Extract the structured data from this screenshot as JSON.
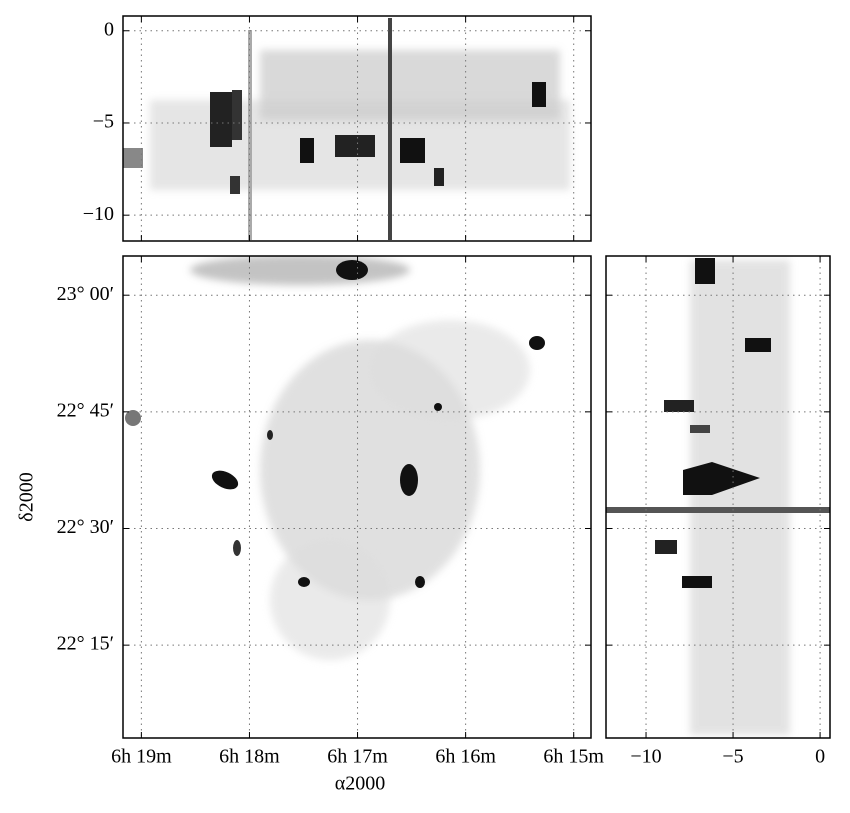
{
  "chart_data": [
    {
      "type": "image",
      "ylim": [
        -11.4,
        0.8
      ],
      "yticks": [
        0,
        {
          "value": -5,
          "label": "−5"
        },
        {
          "value": -10,
          "label": "−10"
        }
      ],
      "grid": true
    },
    {
      "type": "image",
      "xlabel": "α2000",
      "ylabel": "δ2000",
      "xlim": [
        19.17,
        14.84
      ],
      "xticks": [
        {
          "value": 19,
          "label": "6h 19m"
        },
        {
          "value": 18,
          "label": "6h 18m"
        },
        {
          "value": 17,
          "label": "6h 17m"
        },
        {
          "value": 16,
          "label": "6h 16m"
        },
        {
          "value": 15,
          "label": "6h 15m"
        }
      ],
      "ylim": [
        22.051,
        23.084
      ],
      "yticks": [
        {
          "value": 23,
          "label": "23° 00′"
        },
        {
          "value": 22.75,
          "label": "22° 45′"
        },
        {
          "value": 22.5,
          "label": "22° 30′"
        },
        {
          "value": 22.25,
          "label": "22° 15′"
        }
      ],
      "grid": true
    },
    {
      "type": "image",
      "xlim": [
        -12.3,
        0.57
      ],
      "xticks": [
        {
          "value": -10,
          "label": "−10"
        },
        {
          "value": -5,
          "label": "−5"
        },
        0
      ],
      "grid": true
    }
  ]
}
